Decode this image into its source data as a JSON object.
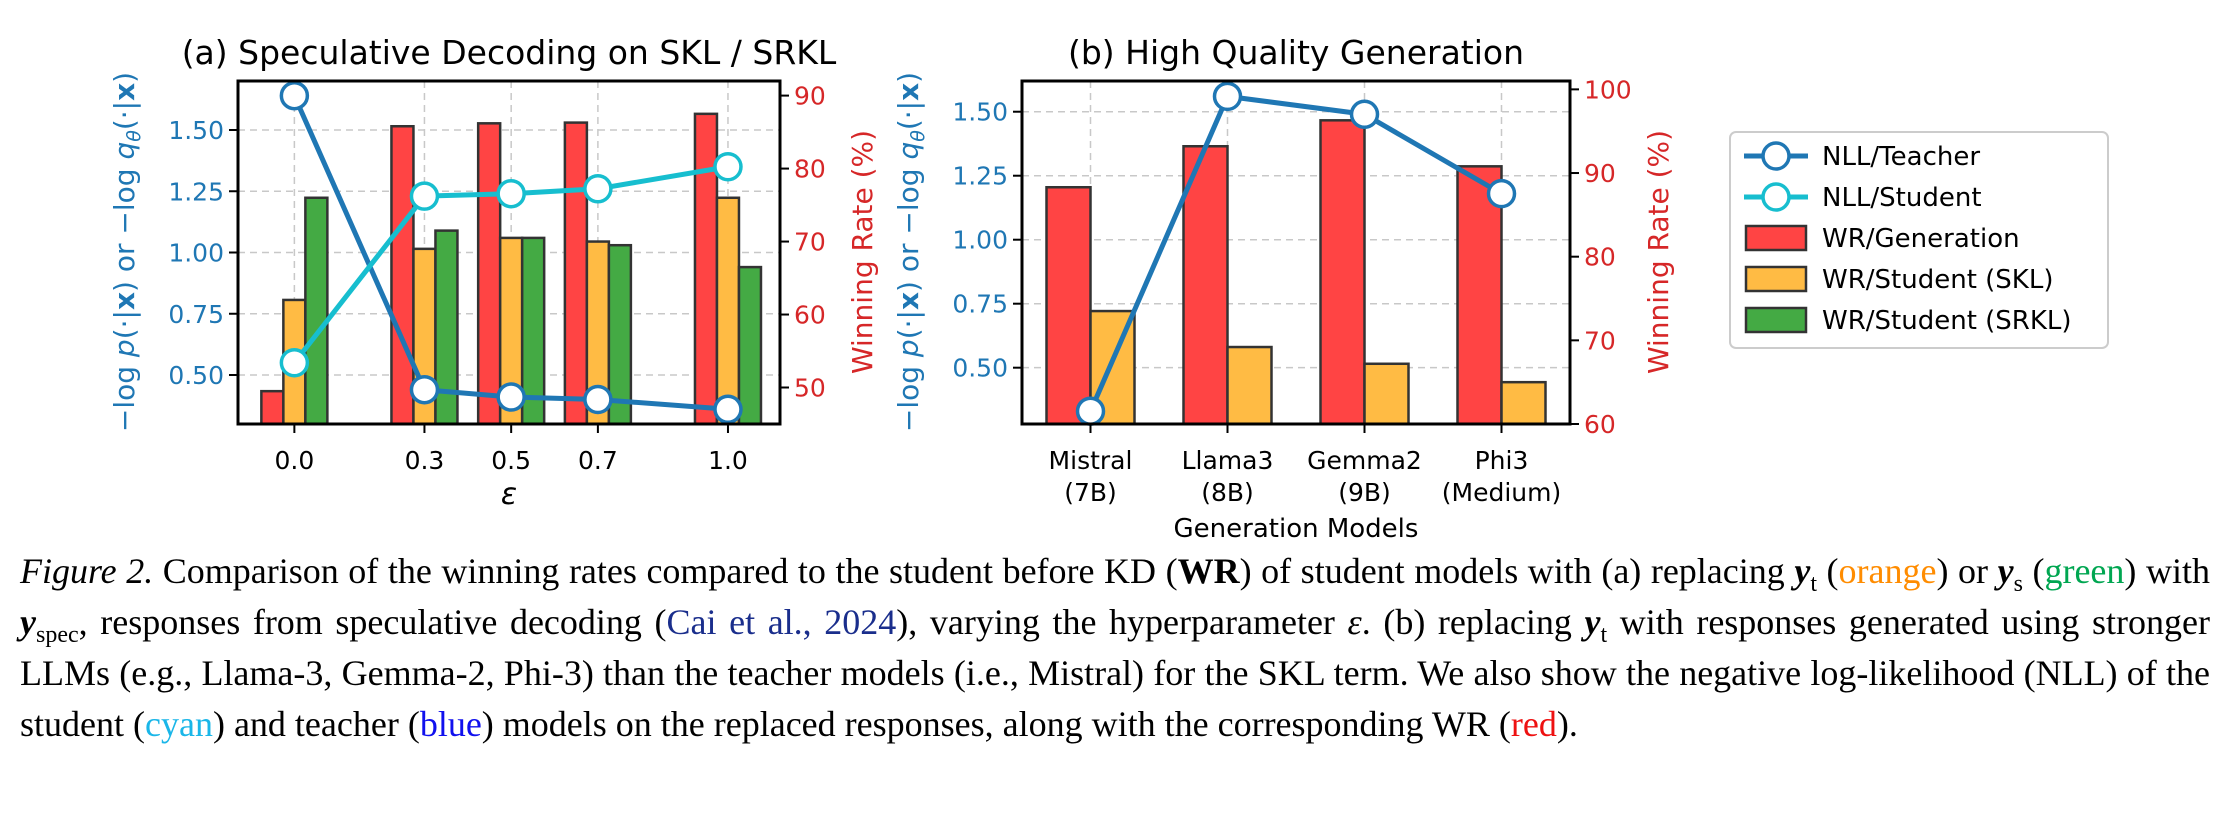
{
  "chart_data": [
    {
      "type": "bar+line",
      "title": "(a) Speculative Decoding on SKL / SRKL",
      "xlabel": "ε",
      "ylabel_left": "−log p(·|x) or −log q_θ(·|x)",
      "ylabel_right": "Winning Rate (%)",
      "x": [
        0.0,
        0.3,
        0.5,
        0.7,
        1.0
      ],
      "x_ticks": [
        "0.0",
        "0.3",
        "0.5",
        "0.7",
        "1.0"
      ],
      "xlim": [
        -0.13,
        1.12
      ],
      "ylim_left": [
        0.3,
        1.7
      ],
      "y_ticks_left": [
        "0.50",
        "0.75",
        "1.00",
        "1.25",
        "1.50"
      ],
      "ylim_right": [
        45,
        92
      ],
      "y_ticks_right": [
        "50",
        "60",
        "70",
        "80",
        "90"
      ],
      "bars": [
        {
          "name": "WR/Generation",
          "color": "#ff4444",
          "values": [
            49.5,
            85.8,
            86.2,
            86.3,
            87.5
          ]
        },
        {
          "name": "WR/Student (SKL)",
          "color": "#ffbb44",
          "values": [
            62.0,
            69.0,
            70.5,
            70.0,
            76.0
          ]
        },
        {
          "name": "WR/Student (SRKL)",
          "color": "#44aa44",
          "values": [
            76.0,
            71.5,
            70.5,
            69.5,
            66.5
          ]
        }
      ],
      "lines": [
        {
          "name": "NLL/Teacher",
          "color": "#1f77b4",
          "values": [
            1.64,
            0.44,
            0.41,
            0.4,
            0.36
          ]
        },
        {
          "name": "NLL/Student",
          "color": "#17becf",
          "values": [
            0.55,
            1.23,
            1.24,
            1.26,
            1.35
          ]
        }
      ]
    },
    {
      "type": "bar+line",
      "title": "(b) High Quality Generation",
      "xlabel": "Generation Models",
      "ylabel_left": "−log p(·|x) or −log q_θ(·|x)",
      "ylabel_right": "Winning Rate (%)",
      "categories": [
        [
          "Mistral",
          "(7B)"
        ],
        [
          "Llama3",
          "(8B)"
        ],
        [
          "Gemma2",
          "(9B)"
        ],
        [
          "Phi3",
          "(Medium)"
        ]
      ],
      "ylim_left": [
        0.28,
        1.62
      ],
      "y_ticks_left": [
        "0.50",
        "0.75",
        "1.00",
        "1.25",
        "1.50"
      ],
      "ylim_right": [
        60,
        101
      ],
      "y_ticks_right": [
        "60",
        "70",
        "80",
        "90",
        "100"
      ],
      "bars": [
        {
          "name": "WR/Generation",
          "color": "#ff4444",
          "values": [
            88.3,
            93.2,
            96.3,
            90.8
          ]
        },
        {
          "name": "WR/Student (SKL)",
          "color": "#ffbb44",
          "values": [
            73.5,
            69.2,
            67.2,
            65.0
          ]
        }
      ],
      "lines": [
        {
          "name": "NLL/Teacher",
          "color": "#1f77b4",
          "values": [
            0.33,
            1.56,
            1.49,
            1.18
          ]
        }
      ]
    }
  ],
  "legend": {
    "placement": "right",
    "items": [
      {
        "label": "NLL/Teacher",
        "kind": "line",
        "color": "#1f77b4"
      },
      {
        "label": "NLL/Student",
        "kind": "line",
        "color": "#17becf"
      },
      {
        "label": "WR/Generation",
        "kind": "bar",
        "color": "#ff4444"
      },
      {
        "label": "WR/Student (SKL)",
        "kind": "bar",
        "color": "#ffbb44"
      },
      {
        "label": "WR/Student (SRKL)",
        "kind": "bar",
        "color": "#44aa44"
      }
    ]
  },
  "colors": {
    "left_axis": "#1f77b4",
    "right_axis": "#d62728"
  },
  "caption": {
    "label": "Figure 2.",
    "s1": " Comparison of the winning rates compared to the student before KD (",
    "wr": "WR",
    "s2": ") of student models with (a) replacing ",
    "yt": "y",
    "yt_sub": "t",
    "s3": " (",
    "orange": "orange",
    "s4": ") or ",
    "ys": "y",
    "ys_sub": "s",
    "s5": " (",
    "green": "green",
    "s6": ") with ",
    "yspec": "y",
    "yspec_sub": "spec",
    "s7": ", responses from speculative decoding (",
    "cite": "Cai et al., 2024",
    "s8": "), varying the hyperparameter ",
    "eps": "ε",
    "s9": ". (b) replacing ",
    "yt2": "y",
    "yt2_sub": "t",
    "s10": " with responses generated using stronger LLMs (e.g., Llama-3, Gemma-2, Phi-3) than the teacher models (i.e., Mistral) for the SKL term. We also show the negative log-likelihood (NLL) of the student (",
    "cyan": "cyan",
    "s11": ") and teacher (",
    "blue": "blue",
    "s12": ") models on the replaced responses, along with the corresponding WR (",
    "red": "red",
    "s13": ")."
  }
}
